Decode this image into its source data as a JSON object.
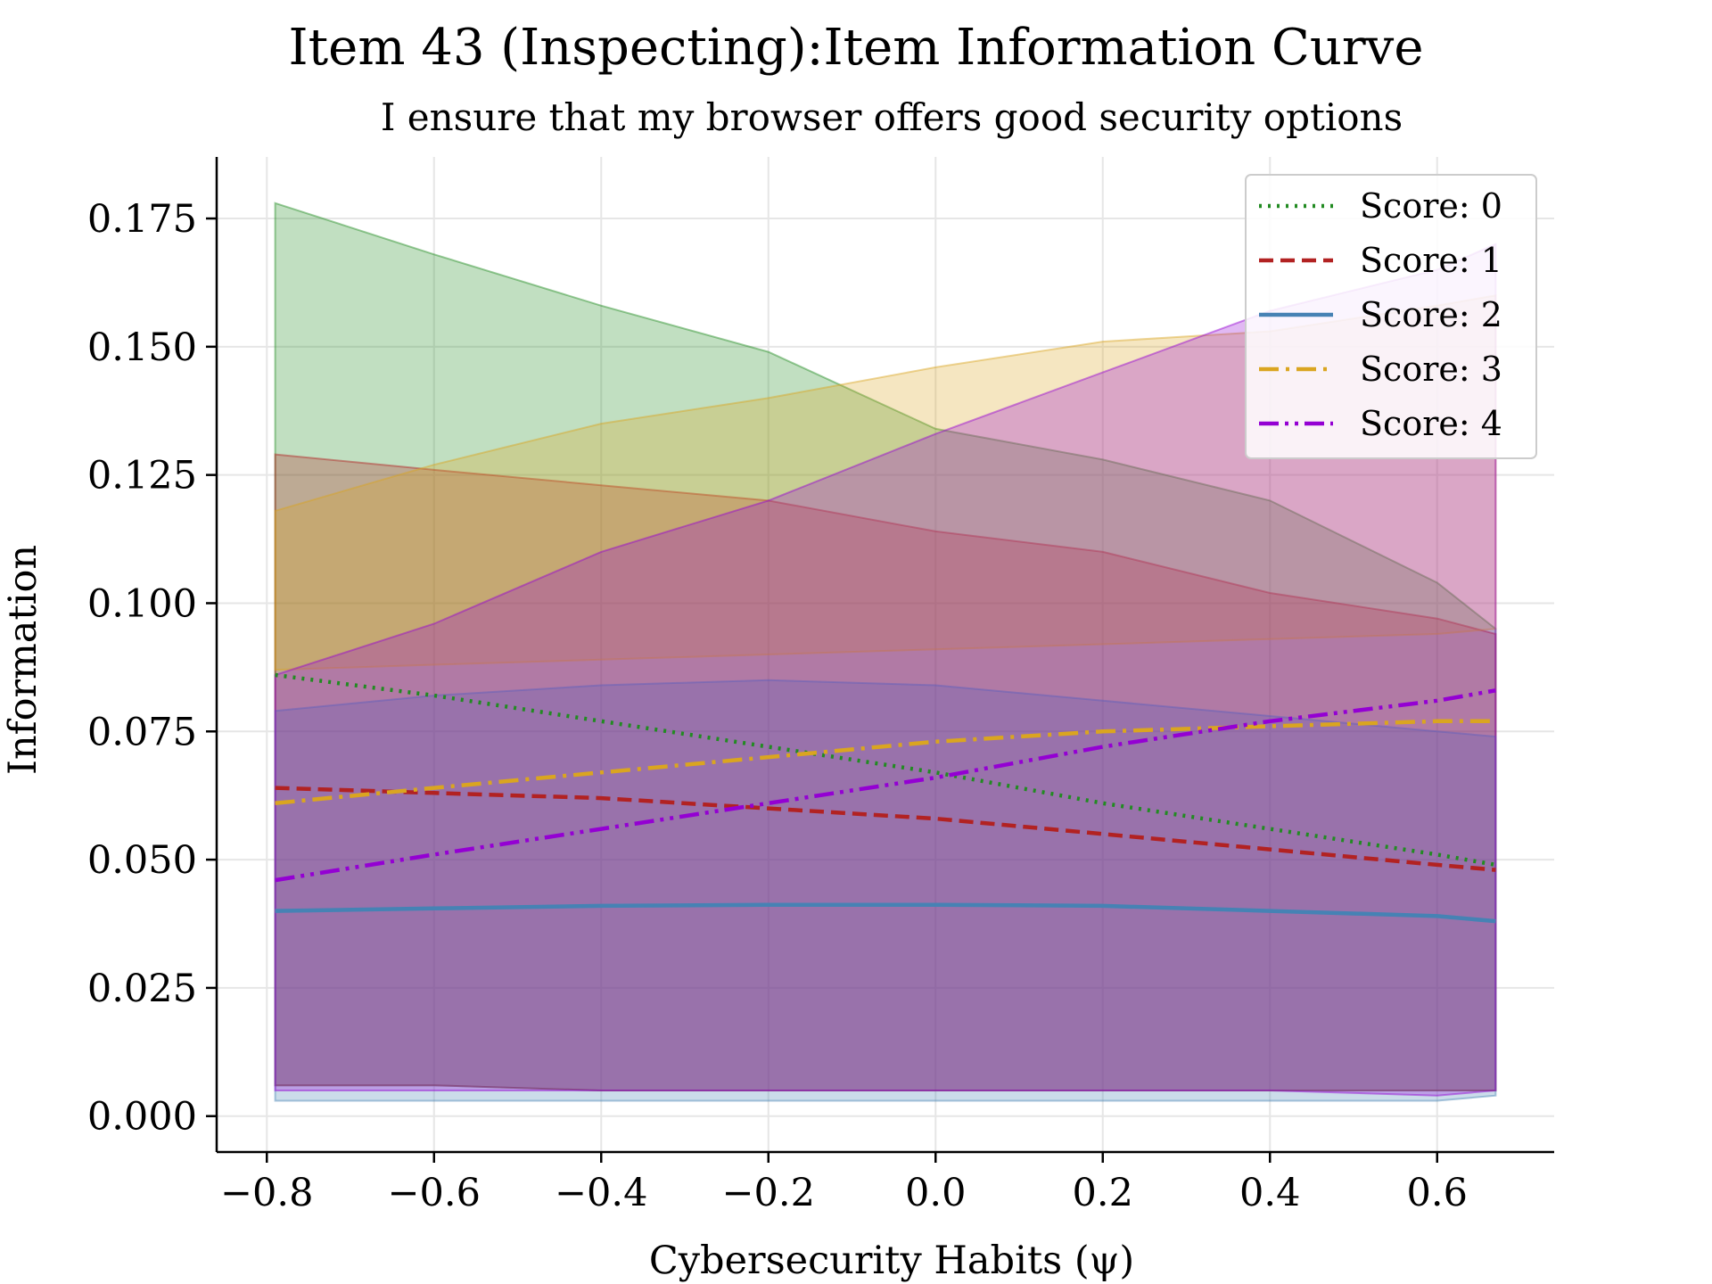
{
  "chart_data": {
    "type": "line",
    "title": "Item 43 (Inspecting):Item Information Curve",
    "subtitle": "I ensure that my browser offers good security options",
    "xlabel": "Cybersecurity Habits (ψ)",
    "ylabel": "Information",
    "xlim": [
      -0.86,
      0.74
    ],
    "ylim": [
      -0.007,
      0.187
    ],
    "xticks": [
      -0.8,
      -0.6,
      -0.4,
      -0.2,
      0.0,
      0.2,
      0.4,
      0.6
    ],
    "xtick_labels": [
      "−0.8",
      "−0.6",
      "−0.4",
      "−0.2",
      "0.0",
      "0.2",
      "0.4",
      "0.6"
    ],
    "yticks": [
      0.0,
      0.025,
      0.05,
      0.075,
      0.1,
      0.125,
      0.15,
      0.175
    ],
    "ytick_labels": [
      "0.000",
      "0.025",
      "0.050",
      "0.075",
      "0.100",
      "0.125",
      "0.150",
      "0.175"
    ],
    "grid": true,
    "legend_position": "top-right",
    "x": [
      -0.79,
      -0.6,
      -0.4,
      -0.2,
      0.0,
      0.2,
      0.4,
      0.6,
      0.67
    ],
    "series": [
      {
        "name": "Score: 0",
        "color": "#228b22",
        "dash": "dotted",
        "values": [
          0.086,
          0.082,
          0.077,
          0.072,
          0.067,
          0.061,
          0.056,
          0.051,
          0.049
        ],
        "band_upper": [
          0.178,
          0.168,
          0.158,
          0.149,
          0.134,
          0.128,
          0.12,
          0.104,
          0.095
        ],
        "band_lower": [
          0.006,
          0.006,
          0.005,
          0.005,
          0.005,
          0.005,
          0.005,
          0.005,
          0.005
        ]
      },
      {
        "name": "Score: 1",
        "color": "#b22222",
        "dash": "dashed",
        "values": [
          0.064,
          0.063,
          0.062,
          0.06,
          0.058,
          0.055,
          0.052,
          0.049,
          0.048
        ],
        "band_upper": [
          0.129,
          0.126,
          0.123,
          0.12,
          0.114,
          0.11,
          0.102,
          0.097,
          0.094
        ],
        "band_lower": [
          0.006,
          0.006,
          0.005,
          0.005,
          0.005,
          0.005,
          0.005,
          0.005,
          0.005
        ]
      },
      {
        "name": "Score: 2",
        "color": "#4682b4",
        "dash": "solid",
        "values": [
          0.04,
          0.0405,
          0.041,
          0.0412,
          0.0412,
          0.041,
          0.04,
          0.039,
          0.038
        ],
        "band_upper": [
          0.079,
          0.082,
          0.084,
          0.085,
          0.084,
          0.081,
          0.078,
          0.075,
          0.074
        ],
        "band_lower": [
          0.003,
          0.003,
          0.003,
          0.003,
          0.003,
          0.003,
          0.003,
          0.003,
          0.004
        ]
      },
      {
        "name": "Score: 3",
        "color": "#daa520",
        "dash": "dashdot",
        "values": [
          0.061,
          0.064,
          0.067,
          0.07,
          0.073,
          0.075,
          0.076,
          0.077,
          0.077
        ],
        "band_upper": [
          0.118,
          0.127,
          0.135,
          0.14,
          0.146,
          0.151,
          0.153,
          0.158,
          0.16
        ],
        "band_lower": [
          0.087,
          0.088,
          0.089,
          0.09,
          0.091,
          0.092,
          0.093,
          0.094,
          0.095
        ]
      },
      {
        "name": "Score: 4",
        "color": "#9400d3",
        "dash": "dashdotdot",
        "values": [
          0.046,
          0.051,
          0.056,
          0.061,
          0.066,
          0.072,
          0.077,
          0.081,
          0.083
        ],
        "band_upper": [
          0.086,
          0.096,
          0.11,
          0.12,
          0.133,
          0.145,
          0.157,
          0.165,
          0.17
        ],
        "band_lower": [
          0.005,
          0.005,
          0.005,
          0.005,
          0.005,
          0.005,
          0.005,
          0.004,
          0.005
        ]
      }
    ]
  }
}
